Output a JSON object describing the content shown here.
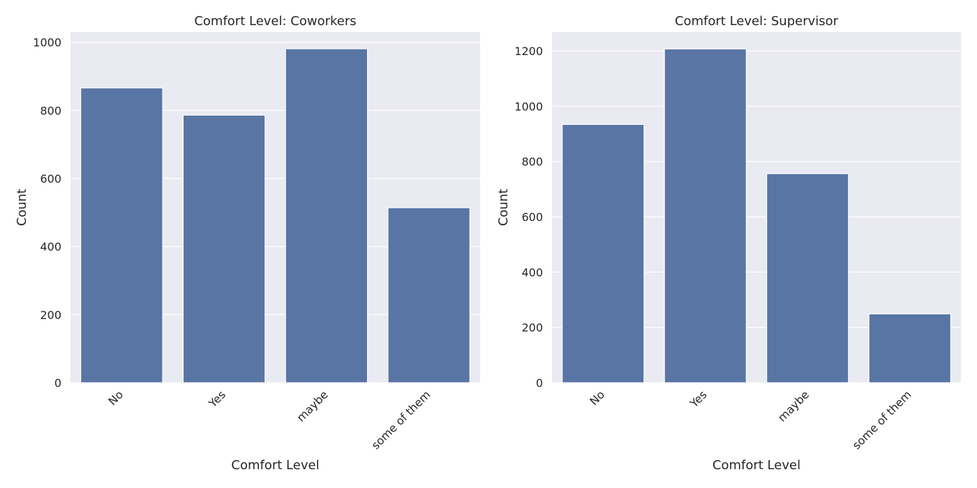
{
  "chart_data": [
    {
      "type": "bar",
      "title": "Comfort Level: Coworkers",
      "xlabel": "Comfort Level",
      "ylabel": "Count",
      "categories": [
        "No",
        "Yes",
        "maybe",
        "some of them"
      ],
      "values": [
        866,
        786,
        981,
        514
      ],
      "ylim": [
        0,
        1030
      ],
      "yticks": [
        0,
        200,
        400,
        600,
        800,
        1000
      ],
      "grid": true,
      "bar_color": "#5875a4",
      "background_color": "#eaeaf2"
    },
    {
      "type": "bar",
      "title": "Comfort Level: Supervisor",
      "xlabel": "Comfort Level",
      "ylabel": "Count",
      "categories": [
        "No",
        "Yes",
        "maybe",
        "some of them"
      ],
      "values": [
        934,
        1207,
        756,
        249
      ],
      "ylim": [
        0,
        1268
      ],
      "yticks": [
        0,
        200,
        400,
        600,
        800,
        1000,
        1200
      ],
      "grid": true,
      "bar_color": "#5875a4",
      "background_color": "#eaeaf2"
    }
  ]
}
